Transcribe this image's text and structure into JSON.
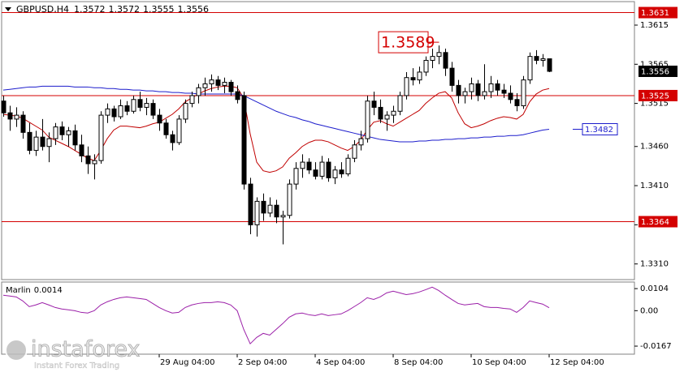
{
  "chart_data": {
    "type": "candlestick",
    "symbol": "GBPUSD,H4",
    "categories": [
      null,
      null,
      null,
      null,
      null,
      null,
      null,
      null,
      null,
      null,
      null,
      null,
      null,
      null,
      null,
      null,
      null,
      null,
      null,
      null,
      null,
      null,
      null,
      null,
      "29 Aug 04:00",
      null,
      null,
      null,
      null,
      null,
      null,
      null,
      null,
      null,
      null,
      null,
      "2 Sep 04:00",
      null,
      null,
      null,
      null,
      null,
      null,
      null,
      null,
      null,
      null,
      null,
      "4 Sep 04:00",
      null,
      null,
      null,
      null,
      null,
      null,
      null,
      null,
      null,
      null,
      null,
      "8 Sep 04:00",
      null,
      null,
      null,
      null,
      null,
      null,
      null,
      null,
      null,
      null,
      null,
      "10 Sep 04:00",
      null,
      null,
      null,
      null,
      null,
      null,
      null,
      null,
      null,
      null,
      null,
      "12 Sep 04:00"
    ],
    "open": [
      1.3518,
      1.3503,
      1.3495,
      1.35,
      1.3478,
      1.3455,
      1.3472,
      1.346,
      1.347,
      1.3485,
      1.3475,
      1.348,
      1.3462,
      1.3448,
      1.3438,
      1.3442,
      1.35,
      1.3508,
      1.3498,
      1.3512,
      1.3505,
      1.352,
      1.351,
      1.3515,
      1.35,
      1.349,
      1.3475,
      1.3465,
      1.3495,
      1.3515,
      1.3525,
      1.3535,
      1.354,
      1.3545,
      1.3538,
      1.3542,
      1.353,
      1.3525,
      1.3412,
      1.336,
      1.339,
      1.3375,
      1.3385,
      1.337,
      1.3372,
      1.3412,
      1.3432,
      1.344,
      1.343,
      1.3422,
      1.344,
      1.342,
      1.343,
      1.3425,
      1.3445,
      1.3462,
      1.347,
      1.3518,
      1.351,
      1.3495,
      1.35,
      1.3505,
      1.3525,
      1.3548,
      1.3545,
      1.3555,
      1.357,
      1.3575,
      1.358,
      1.356,
      1.3538,
      1.3525,
      1.353,
      1.354,
      1.3525,
      1.353,
      1.354,
      1.3532,
      1.3528,
      1.352,
      1.3512,
      1.3545,
      1.3575,
      1.357,
      1.3572
    ],
    "high": [
      1.3525,
      1.3512,
      1.351,
      1.3505,
      1.349,
      1.348,
      1.3495,
      1.3478,
      1.349,
      1.3492,
      1.3485,
      1.3488,
      1.3475,
      1.346,
      1.345,
      1.3505,
      1.3515,
      1.3512,
      1.352,
      1.3518,
      1.3525,
      1.353,
      1.3522,
      1.352,
      1.3508,
      1.3495,
      1.348,
      1.35,
      1.352,
      1.353,
      1.354,
      1.3548,
      1.3552,
      1.355,
      1.3548,
      1.3545,
      1.3538,
      1.353,
      1.342,
      1.3395,
      1.34,
      1.3395,
      1.3392,
      1.3378,
      1.3418,
      1.344,
      1.345,
      1.3445,
      1.344,
      1.3448,
      1.3445,
      1.3435,
      1.344,
      1.345,
      1.3468,
      1.348,
      1.3525,
      1.353,
      1.352,
      1.3505,
      1.3512,
      1.353,
      1.3555,
      1.356,
      1.3562,
      1.3575,
      1.3585,
      1.3589,
      1.3585,
      1.3568,
      1.3545,
      1.3535,
      1.3548,
      1.3545,
      1.3565,
      1.355,
      1.3545,
      1.354,
      1.3538,
      1.3528,
      1.355,
      1.358,
      1.3583,
      1.3578,
      1.3572
    ],
    "low": [
      1.3498,
      1.348,
      1.3485,
      1.347,
      1.345,
      1.3448,
      1.3455,
      1.344,
      1.3462,
      1.3468,
      1.346,
      1.3455,
      1.344,
      1.3425,
      1.3418,
      1.3438,
      1.349,
      1.3492,
      1.3495,
      1.35,
      1.3502,
      1.3505,
      1.35,
      1.3495,
      1.348,
      1.347,
      1.3455,
      1.3462,
      1.349,
      1.351,
      1.3515,
      1.3525,
      1.353,
      1.3532,
      1.3528,
      1.3525,
      1.3515,
      1.3405,
      1.3348,
      1.3345,
      1.3365,
      1.337,
      1.3362,
      1.3335,
      1.3368,
      1.3405,
      1.342,
      1.3425,
      1.3418,
      1.3418,
      1.3415,
      1.3412,
      1.342,
      1.3422,
      1.344,
      1.3455,
      1.3465,
      1.35,
      1.349,
      1.348,
      1.349,
      1.35,
      1.352,
      1.3538,
      1.354,
      1.355,
      1.356,
      1.3565,
      1.355,
      1.353,
      1.3515,
      1.3515,
      1.352,
      1.3518,
      1.352,
      1.3522,
      1.3525,
      1.3522,
      1.3515,
      1.3505,
      1.3508,
      1.354,
      1.3565,
      1.3562,
      1.3555
    ],
    "close": [
      1.3503,
      1.3495,
      1.35,
      1.3478,
      1.3455,
      1.3472,
      1.346,
      1.347,
      1.3485,
      1.3475,
      1.348,
      1.3462,
      1.3448,
      1.3438,
      1.3442,
      1.35,
      1.3508,
      1.3498,
      1.3512,
      1.3505,
      1.352,
      1.351,
      1.3515,
      1.35,
      1.349,
      1.3475,
      1.3465,
      1.3495,
      1.3515,
      1.3525,
      1.3535,
      1.354,
      1.3545,
      1.3538,
      1.3542,
      1.353,
      1.352,
      1.3412,
      1.336,
      1.339,
      1.3375,
      1.3385,
      1.337,
      1.3372,
      1.3412,
      1.3432,
      1.344,
      1.343,
      1.3422,
      1.344,
      1.342,
      1.343,
      1.3425,
      1.3445,
      1.3462,
      1.347,
      1.3518,
      1.351,
      1.3495,
      1.35,
      1.3505,
      1.3525,
      1.3548,
      1.3545,
      1.3555,
      1.357,
      1.3575,
      1.358,
      1.356,
      1.3538,
      1.3525,
      1.353,
      1.354,
      1.3525,
      1.353,
      1.354,
      1.3532,
      1.3528,
      1.352,
      1.3512,
      1.3545,
      1.3575,
      1.357,
      1.3572,
      1.3556
    ],
    "overlays": [
      {
        "color": "#c00000",
        "values": [
          1.3501,
          1.35,
          1.3499,
          1.3496,
          1.3491,
          1.3486,
          1.3481,
          1.3472,
          1.3468,
          1.3464,
          1.346,
          1.3455,
          1.345,
          1.3445,
          1.3442,
          1.3455,
          1.347,
          1.3481,
          1.3486,
          1.3486,
          1.3485,
          1.3484,
          1.3486,
          1.3489,
          1.3491,
          1.3496,
          1.3501,
          1.3508,
          1.3517,
          1.3522,
          1.3527,
          1.3531,
          1.3534,
          1.3536,
          1.3537,
          1.3537,
          1.3535,
          1.3522,
          1.3476,
          1.344,
          1.3429,
          1.3427,
          1.3429,
          1.3434,
          1.3445,
          1.3452,
          1.346,
          1.3465,
          1.3468,
          1.3468,
          1.3466,
          1.3462,
          1.3458,
          1.3455,
          1.346,
          1.3468,
          1.3481,
          1.3491,
          1.3493,
          1.3489,
          1.3486,
          1.3491,
          1.3496,
          1.3501,
          1.3506,
          1.3515,
          1.3522,
          1.3528,
          1.353,
          1.3522,
          1.3503,
          1.3489,
          1.3484,
          1.3486,
          1.3489,
          1.3493,
          1.3496,
          1.3498,
          1.3497,
          1.3495,
          1.3501,
          1.3517,
          1.3527,
          1.3532,
          1.3534
        ]
      },
      {
        "color": "#1c1ccc",
        "values": [
          1.3532,
          1.3533,
          1.3534,
          1.3535,
          1.3536,
          1.3536,
          1.3537,
          1.3537,
          1.3537,
          1.3537,
          1.3537,
          1.3536,
          1.3536,
          1.3536,
          1.3535,
          1.3535,
          1.3534,
          1.3534,
          1.3533,
          1.3533,
          1.3532,
          1.3532,
          1.3531,
          1.3531,
          1.353,
          1.353,
          1.3529,
          1.3529,
          1.3528,
          1.3528,
          1.3527,
          1.3527,
          1.3527,
          1.3527,
          1.3527,
          1.3527,
          1.3527,
          1.3525,
          1.3521,
          1.3517,
          1.3513,
          1.3509,
          1.3505,
          1.3502,
          1.3499,
          1.3497,
          1.3494,
          1.3492,
          1.3489,
          1.3487,
          1.3485,
          1.3483,
          1.3481,
          1.3479,
          1.3477,
          1.3475,
          1.3473,
          1.3471,
          1.3469,
          1.3468,
          1.3467,
          1.3466,
          1.3466,
          1.3466,
          1.3467,
          1.3467,
          1.3468,
          1.3468,
          1.3469,
          1.3469,
          1.347,
          1.347,
          1.3471,
          1.3471,
          1.3472,
          1.3472,
          1.3473,
          1.3473,
          1.3474,
          1.3474,
          1.3475,
          1.3477,
          1.3479,
          1.3481,
          1.3482
        ]
      }
    ],
    "levels": [
      1.3631,
      1.3525,
      1.3364
    ],
    "level_color": "#d40000",
    "ylim": [
      1.329,
      1.3645
    ],
    "yticks": [
      1.3615,
      1.3565,
      1.3515,
      {
        "value": 1.346,
        "label": "1.3460"
      },
      {
        "value": 1.341,
        "label": "1.3410"
      },
      {
        "value": 1.336,
        "label": "1.3360"
      },
      {
        "value": 1.331,
        "label": "1.3310"
      }
    ],
    "indicator": {
      "type": "line",
      "name": "Marlin",
      "color": "#9b1fa8",
      "values": [
        0.0073,
        0.0069,
        0.0065,
        0.0046,
        0.0019,
        0.0027,
        0.0038,
        0.0027,
        0.0015,
        0.0008,
        0.0004,
        0.0,
        -0.0008,
        -0.0011,
        0.0,
        0.0027,
        0.0042,
        0.0053,
        0.0061,
        0.0065,
        0.0061,
        0.0057,
        0.0053,
        0.0034,
        0.0015,
        0.0,
        -0.0011,
        -0.0008,
        0.0015,
        0.0027,
        0.0034,
        0.0038,
        0.0038,
        0.0042,
        0.0038,
        0.0027,
        0.0,
        -0.0088,
        -0.0156,
        -0.0126,
        -0.0107,
        -0.0115,
        -0.0088,
        -0.0061,
        -0.0031,
        -0.0015,
        -0.0011,
        -0.0019,
        -0.0023,
        -0.0015,
        -0.0023,
        -0.0019,
        -0.0015,
        0.0,
        0.0019,
        0.0038,
        0.0061,
        0.0053,
        0.0065,
        0.0084,
        0.0092,
        0.0084,
        0.0076,
        0.008,
        0.0088,
        0.0099,
        0.0111,
        0.0095,
        0.0073,
        0.0053,
        0.0034,
        0.0027,
        0.0031,
        0.0034,
        0.0019,
        0.0015,
        0.0015,
        0.0011,
        0.0008,
        -0.0008,
        0.0015,
        0.0046,
        0.0038,
        0.0031,
        0.0014
      ],
      "ylim": [
        -0.0205,
        0.0135
      ],
      "yticks": [
        0.0104,
        {
          "value": 0,
          "label": "0.00"
        },
        -0.0167
      ]
    },
    "watermark": {
      "name": "instaforex",
      "tagline": "Instant Forex Trading"
    }
  }
}
